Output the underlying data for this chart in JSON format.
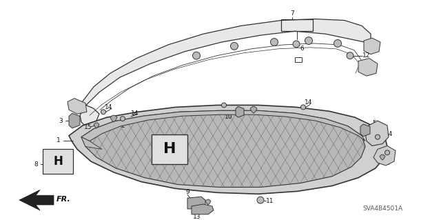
{
  "bg_color": "#ffffff",
  "line_color": "#333333",
  "dark_color": "#111111",
  "fill_color": "#d8d8d8",
  "figsize": [
    6.4,
    3.19
  ],
  "dpi": 100,
  "watermark": "SVA4B4501A",
  "direction_label": "FR."
}
